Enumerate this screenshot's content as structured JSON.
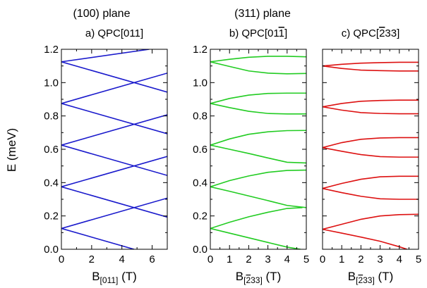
{
  "headers": {
    "left": "(100) plane",
    "right": "(311) plane"
  },
  "y_axis_label": "E (meV)",
  "chart_data": [
    {
      "type": "line",
      "panel_label": "a)  QPC[011]",
      "title_parts": {
        "prefix": "a)  QPC[",
        "overbar": "",
        "suffix": "011]"
      },
      "xlabel_parts": {
        "main": "B",
        "sub_prefix": "[",
        "sub_overbar": "",
        "sub_suffix": "011]",
        "unit": " (T)"
      },
      "xlim": [
        0,
        7
      ],
      "ylim": [
        0,
        1.2
      ],
      "xticks": [
        0,
        2,
        4,
        6
      ],
      "yticks": [
        0.0,
        0.2,
        0.4,
        0.6,
        0.8,
        1.0,
        1.2
      ],
      "ytick_labels": [
        "0.0",
        "0.2",
        "0.4",
        "0.6",
        "0.8",
        "1.0",
        "1.2"
      ],
      "show_yticklabels": true,
      "color": "#1a1acc",
      "series": [
        {
          "x": [
            0,
            4.8
          ],
          "y": [
            0.125,
            0.0
          ]
        },
        {
          "x": [
            0,
            7
          ],
          "y": [
            0.125,
            0.307
          ]
        },
        {
          "x": [
            0,
            7
          ],
          "y": [
            0.375,
            0.193
          ]
        },
        {
          "x": [
            0,
            7
          ],
          "y": [
            0.375,
            0.557
          ]
        },
        {
          "x": [
            0,
            7
          ],
          "y": [
            0.625,
            0.443
          ]
        },
        {
          "x": [
            0,
            7
          ],
          "y": [
            0.625,
            0.807
          ]
        },
        {
          "x": [
            0,
            7
          ],
          "y": [
            0.875,
            0.693
          ]
        },
        {
          "x": [
            0,
            7
          ],
          "y": [
            0.875,
            1.057
          ]
        },
        {
          "x": [
            0,
            7
          ],
          "y": [
            1.125,
            0.943
          ]
        },
        {
          "x": [
            0,
            5.8
          ],
          "y": [
            1.125,
            1.2
          ]
        }
      ]
    },
    {
      "type": "line",
      "panel_label": "b)  QPC[011̄]",
      "title_parts": {
        "prefix": "b)  QPC[01",
        "overbar": "1",
        "suffix": "]"
      },
      "xlabel_parts": {
        "main": "B",
        "sub_prefix": "[",
        "sub_overbar": "2",
        "sub_suffix": "33]",
        "unit": " (T)"
      },
      "xlim": [
        0,
        5
      ],
      "ylim": [
        0,
        1.2
      ],
      "xticks": [
        0,
        1,
        2,
        3,
        4,
        5
      ],
      "yticks": [
        0.0,
        0.2,
        0.4,
        0.6,
        0.8,
        1.0,
        1.2
      ],
      "ytick_labels": [
        "0.0",
        "0.2",
        "0.4",
        "0.6",
        "0.8",
        "1.0",
        "1.2"
      ],
      "show_yticklabels": true,
      "color": "#22cc22",
      "series": [
        {
          "x": [
            0,
            1,
            2,
            3,
            4,
            4.7
          ],
          "y": [
            0.125,
            0.097,
            0.069,
            0.041,
            0.013,
            0.0
          ]
        },
        {
          "x": [
            0,
            1,
            2,
            3,
            4,
            4.8
          ],
          "y": [
            0.125,
            0.162,
            0.195,
            0.222,
            0.245,
            0.25
          ]
        },
        {
          "x": [
            0,
            1,
            2,
            3,
            4,
            5
          ],
          "y": [
            0.375,
            0.348,
            0.32,
            0.292,
            0.263,
            0.25
          ]
        },
        {
          "x": [
            0,
            1,
            2,
            3,
            4,
            5
          ],
          "y": [
            0.375,
            0.412,
            0.44,
            0.462,
            0.473,
            0.475
          ]
        },
        {
          "x": [
            0,
            1,
            2,
            3,
            4,
            5
          ],
          "y": [
            0.625,
            0.6,
            0.575,
            0.548,
            0.522,
            0.518
          ]
        },
        {
          "x": [
            0,
            1,
            2,
            3,
            4,
            5
          ],
          "y": [
            0.625,
            0.662,
            0.69,
            0.705,
            0.712,
            0.713
          ]
        },
        {
          "x": [
            0,
            1,
            2,
            3,
            4,
            5
          ],
          "y": [
            0.875,
            0.85,
            0.828,
            0.815,
            0.812,
            0.812
          ]
        },
        {
          "x": [
            0,
            1,
            2,
            3,
            4,
            5
          ],
          "y": [
            0.875,
            0.905,
            0.925,
            0.935,
            0.937,
            0.937
          ]
        },
        {
          "x": [
            0,
            1,
            2,
            3,
            4,
            5
          ],
          "y": [
            1.125,
            1.097,
            1.07,
            1.057,
            1.053,
            1.055
          ]
        },
        {
          "x": [
            0,
            1,
            2,
            3,
            4,
            5
          ],
          "y": [
            1.125,
            1.14,
            1.152,
            1.158,
            1.158,
            1.155
          ]
        }
      ]
    },
    {
      "type": "line",
      "panel_label": "c)  QPC[2̄33]",
      "title_parts": {
        "prefix": "c)  QPC[",
        "overbar": "2",
        "suffix": "33]"
      },
      "xlabel_parts": {
        "main": "B",
        "sub_prefix": "[",
        "sub_overbar": "2",
        "sub_suffix": "33]",
        "unit": " (T)"
      },
      "xlim": [
        0,
        5
      ],
      "ylim": [
        0,
        1.2
      ],
      "xticks": [
        0,
        1,
        2,
        3,
        4,
        5
      ],
      "yticks": [
        0.0,
        0.2,
        0.4,
        0.6,
        0.8,
        1.0,
        1.2
      ],
      "ytick_labels": [],
      "show_yticklabels": false,
      "color": "#dd1111",
      "series": [
        {
          "x": [
            0,
            1,
            2,
            3,
            4,
            4.4
          ],
          "y": [
            0.12,
            0.097,
            0.073,
            0.048,
            0.015,
            0.0
          ]
        },
        {
          "x": [
            0,
            1,
            2,
            3,
            4,
            5
          ],
          "y": [
            0.12,
            0.15,
            0.18,
            0.2,
            0.208,
            0.21
          ]
        },
        {
          "x": [
            0,
            1,
            2,
            3,
            4,
            5
          ],
          "y": [
            0.365,
            0.34,
            0.318,
            0.303,
            0.3,
            0.3
          ]
        },
        {
          "x": [
            0,
            1,
            2,
            3,
            4,
            5
          ],
          "y": [
            0.365,
            0.395,
            0.42,
            0.435,
            0.438,
            0.438
          ]
        },
        {
          "x": [
            0,
            1,
            2,
            3,
            4,
            5
          ],
          "y": [
            0.61,
            0.588,
            0.568,
            0.556,
            0.553,
            0.553
          ]
        },
        {
          "x": [
            0,
            1,
            2,
            3,
            4,
            5
          ],
          "y": [
            0.61,
            0.64,
            0.66,
            0.668,
            0.67,
            0.67
          ]
        },
        {
          "x": [
            0,
            1,
            2,
            3,
            4,
            5
          ],
          "y": [
            0.855,
            0.835,
            0.82,
            0.815,
            0.813,
            0.813
          ]
        },
        {
          "x": [
            0,
            1,
            2,
            3,
            4,
            5
          ],
          "y": [
            0.855,
            0.875,
            0.888,
            0.893,
            0.895,
            0.895
          ]
        },
        {
          "x": [
            0,
            1,
            2,
            3,
            4,
            5
          ],
          "y": [
            1.1,
            1.085,
            1.075,
            1.072,
            1.07,
            1.07
          ]
        },
        {
          "x": [
            0,
            1,
            2,
            3,
            4,
            5
          ],
          "y": [
            1.1,
            1.11,
            1.117,
            1.12,
            1.122,
            1.122
          ]
        }
      ]
    }
  ]
}
